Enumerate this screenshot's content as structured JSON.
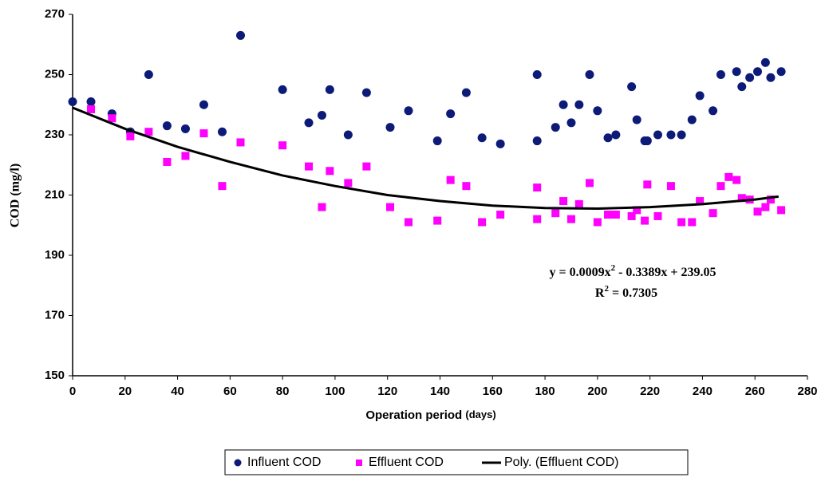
{
  "chart_data": {
    "type": "scatter",
    "y_label": "COD (mg/l)",
    "x_label": "Operation period",
    "x_label_unit": "(days)",
    "xlim": [
      0,
      280
    ],
    "ylim": [
      150,
      270
    ],
    "xticks": [
      0,
      20,
      40,
      60,
      80,
      100,
      120,
      140,
      160,
      180,
      200,
      220,
      240,
      260,
      280
    ],
    "yticks": [
      150,
      170,
      190,
      210,
      230,
      250,
      270
    ],
    "grid": false,
    "legend": "bottom",
    "equation": [
      "y = 0.0009x",
      "2",
      " - 0.3389x + 239.05"
    ],
    "r_squared": [
      "R",
      "2",
      " = 0.7305"
    ],
    "series": [
      {
        "name": "Influent COD",
        "type": "scatter",
        "marker": "circle",
        "color": "#0c1a78",
        "x": [
          0,
          7,
          15,
          22,
          29,
          36,
          43,
          50,
          57,
          64,
          80,
          90,
          95,
          98,
          105,
          112,
          121,
          128,
          139,
          144,
          150,
          156,
          163,
          177,
          177,
          184,
          187,
          190,
          193,
          197,
          200,
          204,
          207,
          213,
          215,
          218,
          219,
          223,
          228,
          232,
          236,
          239,
          244,
          247,
          253,
          255,
          258,
          261,
          264,
          266,
          270
        ],
        "values": [
          241,
          241,
          237,
          231,
          250,
          233,
          232,
          240,
          231,
          263,
          245,
          234,
          236.5,
          245,
          230,
          244,
          232.5,
          238,
          228,
          237,
          244,
          229,
          227,
          250,
          228,
          232.5,
          240,
          234,
          240,
          250,
          238,
          229,
          230,
          246,
          235,
          228,
          228,
          230,
          230,
          230,
          235,
          243,
          238,
          250,
          251,
          246,
          249,
          251,
          254,
          249,
          251
        ]
      },
      {
        "name": "Effluent COD",
        "type": "scatter",
        "marker": "square",
        "color": "#ff00ff",
        "x": [
          7,
          15,
          22,
          29,
          36,
          43,
          50,
          57,
          64,
          80,
          90,
          95,
          98,
          105,
          112,
          121,
          128,
          139,
          144,
          150,
          156,
          163,
          177,
          177,
          184,
          187,
          190,
          193,
          197,
          200,
          204,
          207,
          213,
          215,
          218,
          219,
          223,
          228,
          232,
          236,
          239,
          244,
          247,
          250,
          253,
          255,
          258,
          261,
          264,
          266,
          270
        ],
        "values": [
          238.5,
          235.5,
          229.5,
          231,
          221,
          223,
          230.5,
          213,
          227.5,
          226.5,
          219.5,
          206,
          218,
          214,
          219.5,
          206,
          201,
          201.5,
          215,
          213,
          201,
          203.5,
          212.5,
          202,
          204,
          208,
          202,
          207,
          214,
          201,
          203.5,
          203.5,
          203,
          205,
          201.5,
          213.5,
          203,
          213,
          201,
          201,
          208,
          204,
          213,
          216,
          215,
          209,
          208.5,
          204.5,
          206,
          208.5,
          205
        ]
      },
      {
        "name": "Poly. (Effluent COD)",
        "type": "line",
        "color": "#000000",
        "x": [
          0,
          20,
          40,
          60,
          80,
          100,
          120,
          140,
          160,
          180,
          200,
          220,
          240,
          260,
          269
        ],
        "values": [
          239,
          232,
          226,
          221,
          216.5,
          213,
          210,
          208,
          206.5,
          205.7,
          205.5,
          206,
          207,
          208.5,
          209.5
        ]
      }
    ]
  }
}
